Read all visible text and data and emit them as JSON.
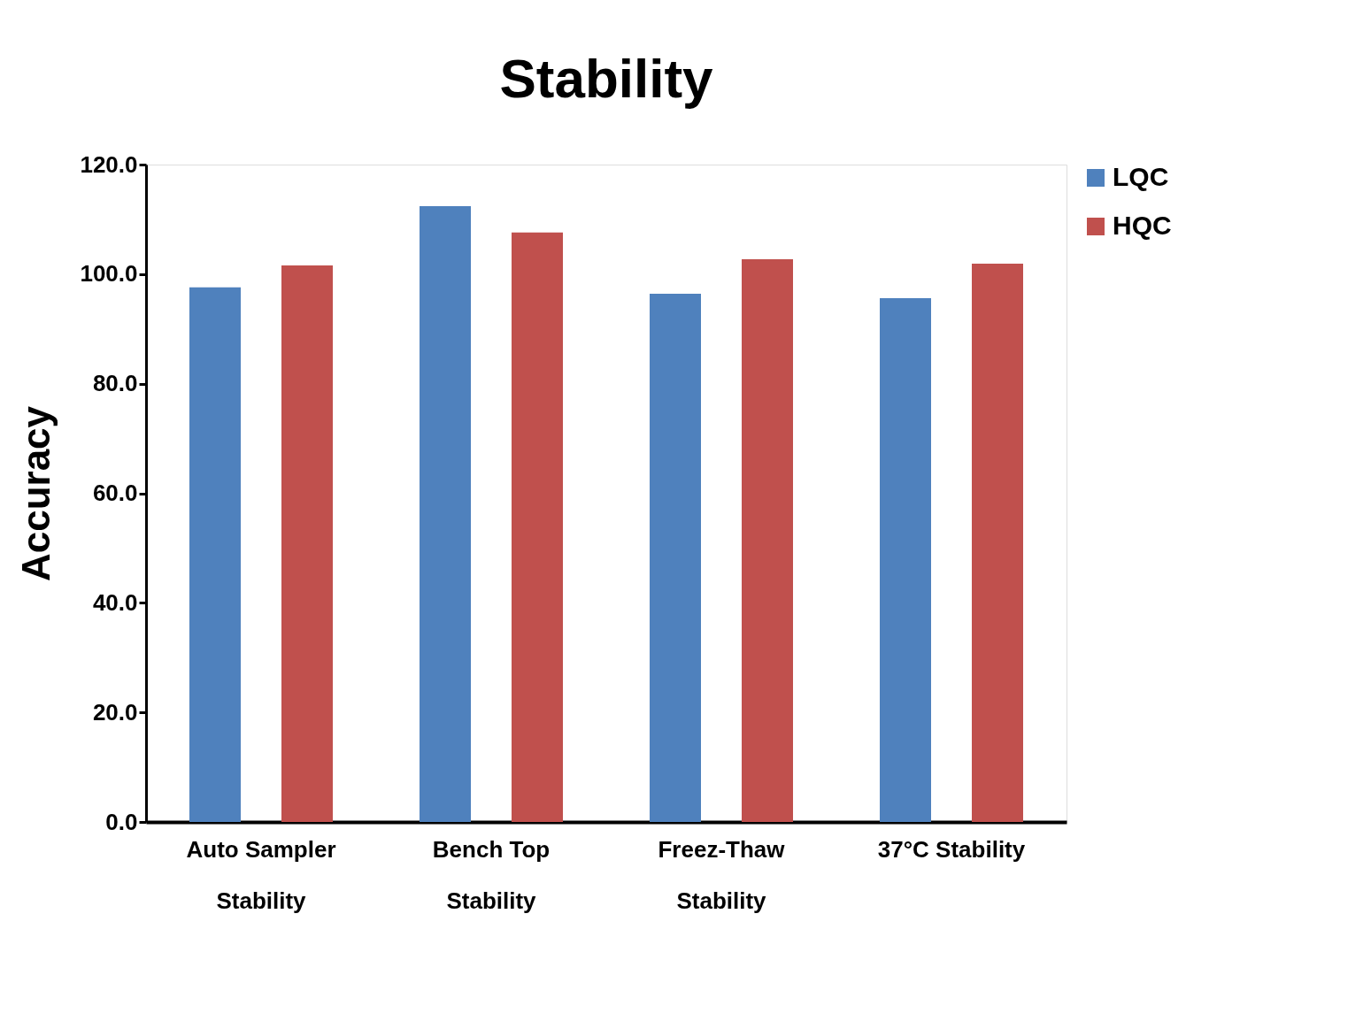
{
  "chart_data": {
    "type": "bar",
    "title": "Stability",
    "ylabel": "Accuracy",
    "categories": [
      "Auto Sampler\nStability",
      "Bench Top\nStability",
      "Freez-Thaw\nStability",
      "37°C Stability"
    ],
    "series": [
      {
        "name": "LQC",
        "color": "#4f81bd",
        "values": [
          97.6,
          112.4,
          96.4,
          95.6
        ]
      },
      {
        "name": "HQC",
        "color": "#c0504d",
        "values": [
          101.6,
          107.6,
          102.7,
          101.9
        ]
      }
    ],
    "ylim": [
      0,
      120
    ],
    "yticks": [
      {
        "value": 0,
        "label": "0.0"
      },
      {
        "value": 20,
        "label": "20.0"
      },
      {
        "value": 40,
        "label": "40.0"
      },
      {
        "value": 60,
        "label": "60.0"
      },
      {
        "value": 80,
        "label": "80.0"
      },
      {
        "value": 100,
        "label": "100.0"
      },
      {
        "value": 120,
        "label": "120.0"
      }
    ],
    "grid": false,
    "legend": "right"
  }
}
